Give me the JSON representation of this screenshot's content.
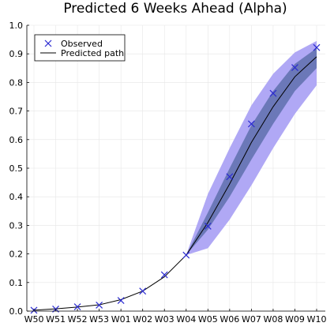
{
  "chart_data": {
    "type": "line",
    "title": "Predicted 6 Weeks Ahead (Alpha)",
    "xlabel": "",
    "ylabel": "",
    "categories": [
      "W50",
      "W51",
      "W52",
      "W53",
      "W01",
      "W02",
      "W03",
      "W04",
      "W05",
      "W06",
      "W07",
      "W08",
      "W09",
      "W10"
    ],
    "ylim": [
      0,
      1
    ],
    "yticks": [
      0.0,
      0.1,
      0.2,
      0.3,
      0.4,
      0.5,
      0.6,
      0.7,
      0.8,
      0.9,
      1.0
    ],
    "yticklabels": [
      "0.0",
      "0.1",
      "0.2",
      "0.3",
      "0.4",
      "0.5",
      "0.6",
      "0.7",
      "0.8",
      "0.9",
      "1.0"
    ],
    "grid": true,
    "legend_position": "top-left",
    "series": [
      {
        "name": "Observed",
        "kind": "scatter",
        "marker": "x",
        "color": "#2b2bd0",
        "values": [
          0.003,
          0.007,
          0.015,
          0.021,
          0.037,
          0.07,
          0.127,
          0.196,
          0.297,
          0.47,
          0.655,
          0.762,
          0.852,
          0.922
        ]
      },
      {
        "name": "Predicted path",
        "kind": "line",
        "color": "#000000",
        "values": [
          0.003,
          0.008,
          0.014,
          0.022,
          0.04,
          0.07,
          0.12,
          0.196,
          0.31,
          0.445,
          0.59,
          0.715,
          0.82,
          0.89
        ]
      }
    ],
    "bands": [
      {
        "name": "outer",
        "color": "#b0a8f5",
        "start_index": 7,
        "lower": [
          0.196,
          0.22,
          0.32,
          0.44,
          0.57,
          0.69,
          0.79
        ],
        "upper": [
          0.196,
          0.41,
          0.57,
          0.72,
          0.83,
          0.905,
          0.945
        ]
      },
      {
        "name": "inner",
        "color": "#6b78b8",
        "start_index": 7,
        "lower": [
          0.196,
          0.285,
          0.4,
          0.53,
          0.655,
          0.77,
          0.85
        ],
        "upper": [
          0.196,
          0.345,
          0.5,
          0.65,
          0.77,
          0.865,
          0.92
        ]
      }
    ]
  }
}
